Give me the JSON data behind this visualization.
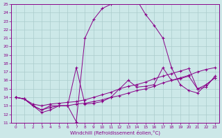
{
  "xlabel": "Windchill (Refroidissement éolien,°C)",
  "xlim": [
    -0.5,
    23.5
  ],
  "ylim": [
    11,
    25
  ],
  "xticks": [
    0,
    1,
    2,
    3,
    4,
    5,
    6,
    7,
    8,
    9,
    10,
    11,
    12,
    13,
    14,
    15,
    16,
    17,
    18,
    19,
    20,
    21,
    22,
    23
  ],
  "yticks": [
    11,
    12,
    13,
    14,
    15,
    16,
    17,
    18,
    19,
    20,
    21,
    22,
    23,
    24,
    25
  ],
  "background_color": "#cce8e8",
  "grid_color": "#aadddd",
  "line_color": "#880088",
  "line1_x": [
    0,
    1,
    2,
    3,
    4,
    5,
    6,
    7,
    8,
    9,
    10,
    11,
    12,
    13,
    14,
    15,
    16,
    17,
    18,
    19,
    20,
    21,
    22,
    23
  ],
  "line1_y": [
    14.0,
    13.8,
    13.0,
    12.5,
    12.8,
    13.0,
    13.0,
    13.2,
    13.3,
    13.5,
    13.7,
    14.0,
    14.2,
    14.5,
    14.8,
    15.0,
    15.3,
    15.7,
    16.0,
    16.3,
    16.6,
    17.0,
    17.3,
    17.5
  ],
  "line2_x": [
    0,
    1,
    2,
    3,
    4,
    5,
    6,
    7,
    8,
    9,
    10,
    11,
    12,
    13,
    14,
    15,
    16,
    17,
    18,
    19,
    20,
    21,
    22,
    23
  ],
  "line2_y": [
    14.0,
    13.8,
    13.2,
    13.0,
    13.2,
    13.3,
    13.4,
    13.5,
    13.7,
    14.0,
    14.3,
    14.6,
    15.0,
    15.3,
    15.5,
    15.8,
    16.2,
    16.5,
    16.8,
    17.1,
    17.4,
    15.0,
    15.2,
    16.5
  ],
  "line3_x": [
    0,
    1,
    2,
    3,
    4,
    5,
    6,
    7,
    8,
    9,
    10,
    11,
    12,
    13,
    14,
    15,
    16,
    17,
    18,
    19,
    20,
    21,
    22,
    23
  ],
  "line3_y": [
    14.0,
    13.8,
    13.0,
    12.2,
    12.5,
    13.0,
    13.0,
    17.5,
    13.2,
    13.3,
    13.5,
    14.0,
    15.0,
    16.0,
    15.2,
    15.3,
    15.5,
    17.5,
    16.0,
    16.2,
    16.5,
    15.0,
    15.5,
    16.3
  ],
  "line4_x": [
    0,
    1,
    2,
    3,
    4,
    5,
    6,
    7,
    8,
    9,
    10,
    11,
    12,
    13,
    14,
    15,
    16,
    17,
    18,
    19,
    20,
    21,
    22,
    23
  ],
  "line4_y": [
    14.0,
    13.8,
    13.0,
    12.5,
    13.0,
    13.0,
    13.0,
    11.1,
    21.0,
    23.2,
    24.5,
    25.0,
    25.2,
    25.5,
    25.5,
    23.8,
    22.5,
    21.0,
    17.5,
    15.5,
    14.8,
    14.5,
    15.5,
    16.3
  ]
}
